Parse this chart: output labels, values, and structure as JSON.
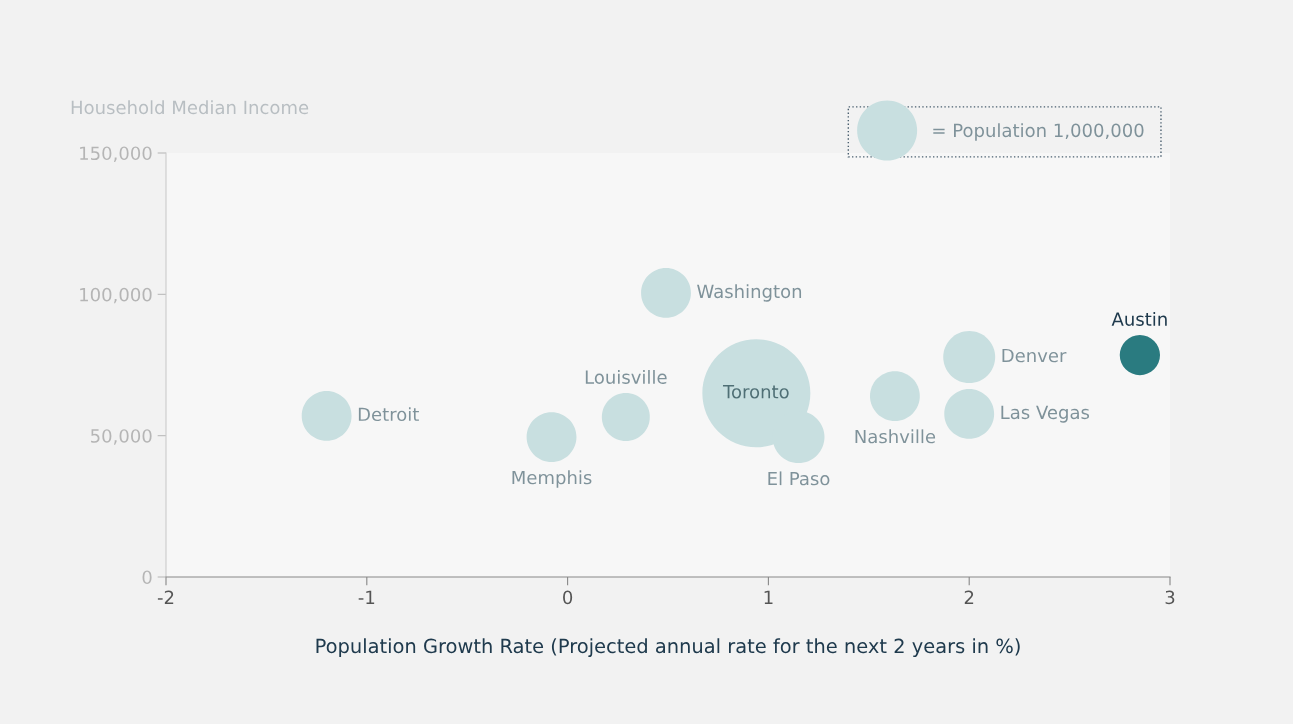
{
  "chart_data": {
    "type": "bubble",
    "xlabel": "Population Growth Rate (Projected annual rate for the next 2 years in %)",
    "ylabel": "Household Median Income",
    "xlim": [
      -2,
      3
    ],
    "xticks": [
      -2,
      -1,
      0,
      1,
      2,
      3
    ],
    "ylim": [
      0,
      150000
    ],
    "yticks": [
      0,
      {
        "value": 50000,
        "label": "50,000"
      },
      {
        "value": 100000,
        "label": "100,000"
      },
      {
        "value": 150000,
        "label": "150,000"
      }
    ],
    "size_legend": [
      {
        "value": 1000000,
        "label": "= Population 1,000,000"
      }
    ],
    "grid": false,
    "series": [
      {
        "name": "Detroit",
        "color": "#c8dfe0",
        "x": [
          -1.2
        ],
        "values": [
          57000
        ],
        "sizes": [
          690000
        ]
      },
      {
        "name": "Memphis",
        "color": "#c8dfe0",
        "x": [
          -0.08
        ],
        "values": [
          49500
        ],
        "sizes": [
          690000
        ]
      },
      {
        "name": "Louisville",
        "color": "#c8dfe0",
        "x": [
          0.29
        ],
        "values": [
          56600
        ],
        "sizes": [
          640000
        ]
      },
      {
        "name": "Washington",
        "color": "#c8dfe0",
        "x": [
          0.49
        ],
        "values": [
          100500
        ],
        "sizes": [
          690000
        ]
      },
      {
        "name": "Toronto",
        "color": "#c8dfe0",
        "x": [
          0.94
        ],
        "values": [
          65000
        ],
        "sizes": [
          3240000
        ]
      },
      {
        "name": "El Paso",
        "color": "#c8dfe0",
        "x": [
          1.15
        ],
        "values": [
          49500
        ],
        "sizes": [
          750000
        ]
      },
      {
        "name": "Nashville",
        "color": "#c8dfe0",
        "x": [
          1.63
        ],
        "values": [
          64000
        ],
        "sizes": [
          690000
        ]
      },
      {
        "name": "Denver",
        "color": "#c8dfe0",
        "x": [
          2.0
        ],
        "values": [
          77800
        ],
        "sizes": [
          750000
        ]
      },
      {
        "name": "Las Vegas",
        "color": "#c8dfe0",
        "x": [
          2.0
        ],
        "values": [
          57700
        ],
        "sizes": [
          690000
        ]
      },
      {
        "name": "Austin",
        "color": "#2a7b80",
        "x": [
          2.85
        ],
        "values": [
          78500
        ],
        "sizes": [
          450000
        ]
      }
    ]
  }
}
